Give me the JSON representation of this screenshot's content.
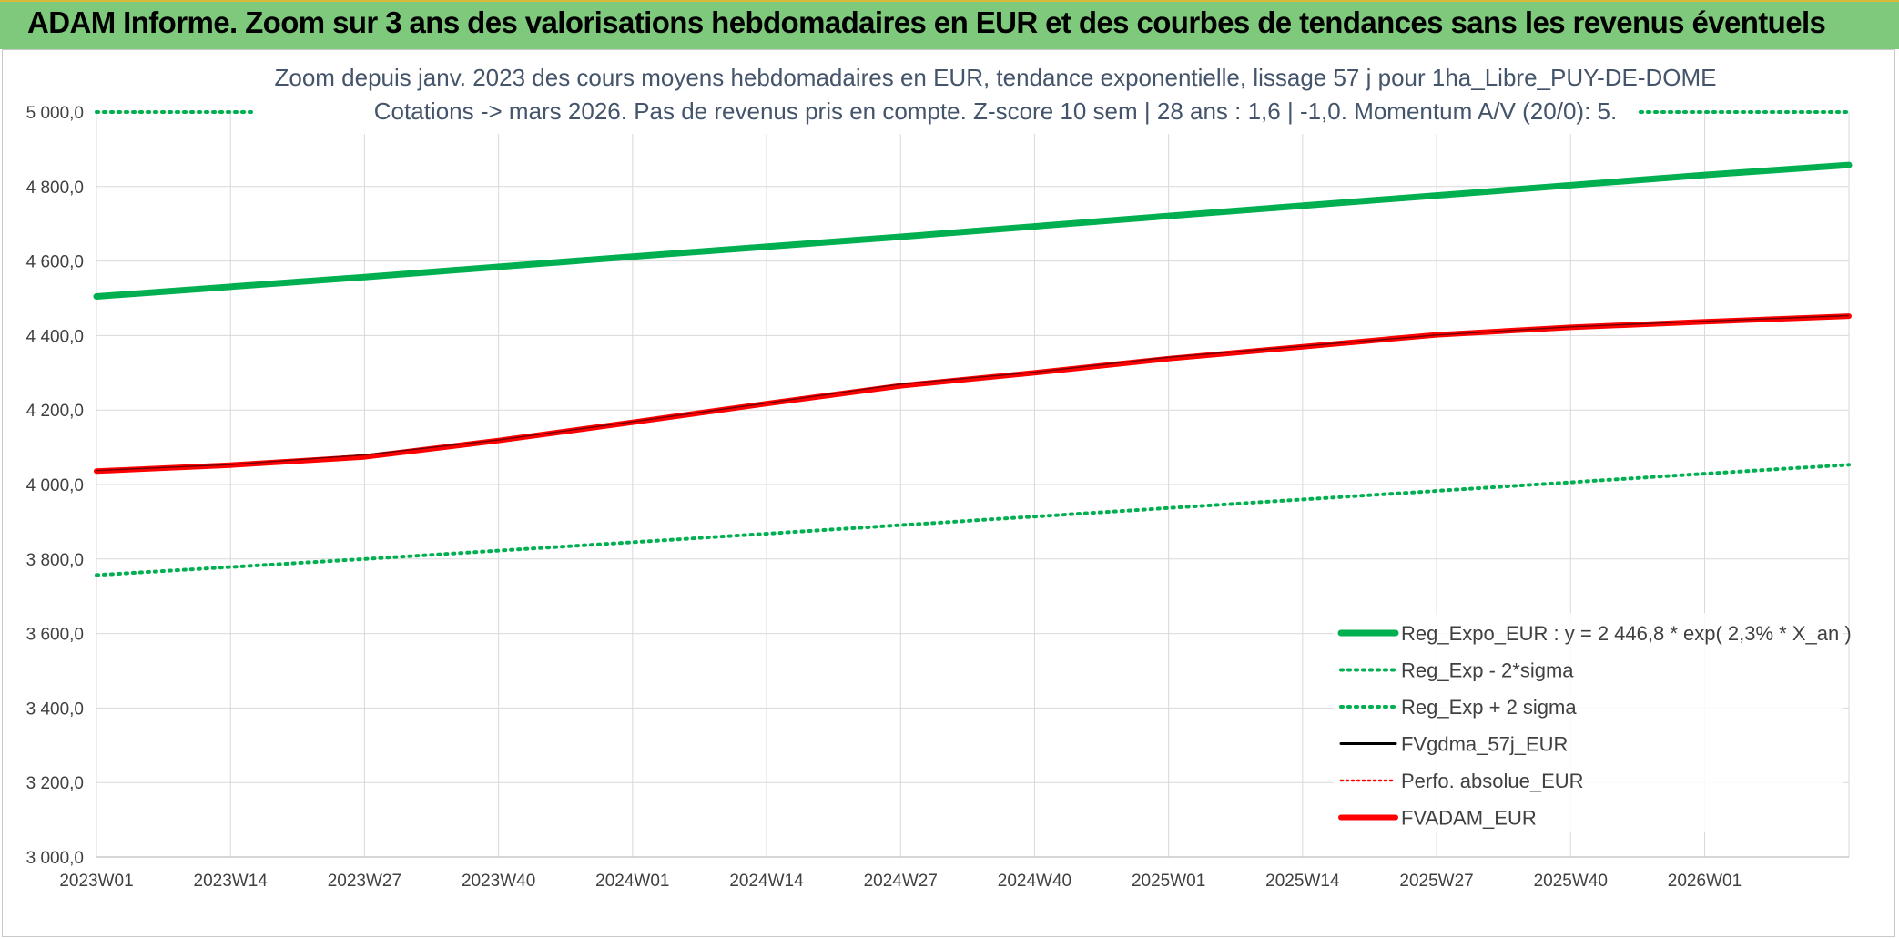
{
  "banner": {
    "title": "ADAM Informe. Zoom sur 3 ans des valorisations hebdomadaires en EUR et des courbes de tendances sans les revenus éventuels"
  },
  "colors": {
    "banner_bg": "#7ec97c",
    "reg_expo": "#00b050",
    "sigma": "#00b050",
    "fvgdma": "#000000",
    "perfo": "#ff0000",
    "fvadam": "#ff0000",
    "grid": "#d9d9d9",
    "text": "#404040"
  },
  "chart_data": {
    "type": "line",
    "title_lines": [
      "Zoom depuis janv. 2023 des cours moyens hebdomadaires en EUR, tendance exponentielle, lissage 57 j pour 1ha_Libre_PUY-DE-DOME",
      "Cotations -> mars 2026. Pas de revenus pris en compte. Z-score 10 sem | 28 ans : 1,6 | -1,0. Momentum A/V (20/0): 5."
    ],
    "xlabel": "",
    "ylabel": "",
    "ylim": [
      3000,
      5000
    ],
    "y_ticks": [
      "3 000,0",
      "3 200,0",
      "3 400,0",
      "3 600,0",
      "3 800,0",
      "4 000,0",
      "4 200,0",
      "4 400,0",
      "4 600,0",
      "4 800,0",
      "5 000,0"
    ],
    "x_ticks": [
      "2023W01",
      "2023W14",
      "2023W27",
      "2023W40",
      "2024W01",
      "2024W14",
      "2024W27",
      "2024W40",
      "2025W01",
      "2025W14",
      "2025W27",
      "2025W40",
      "2026W01"
    ],
    "x_tick_weeks": [
      0,
      13,
      26,
      39,
      52,
      65,
      78,
      91,
      104,
      117,
      130,
      143,
      156
    ],
    "x_range_weeks": [
      0,
      170
    ],
    "grid": true,
    "legend_position": "bottom-right",
    "series": [
      {
        "name": "Reg_Expo_EUR : y = 2 446,8 * exp( 2,3% *  X_an )",
        "style": "solid-thick",
        "x_weeks": [
          0,
          26,
          52,
          78,
          104,
          130,
          156,
          170
        ],
        "values": [
          4505,
          4557,
          4612,
          4665,
          4721,
          4776,
          4831,
          4858
        ]
      },
      {
        "name": "Reg_Exp - 2*sigma",
        "style": "dotted",
        "x_weeks": [
          0,
          26,
          52,
          78,
          104,
          130,
          156,
          170
        ],
        "values": [
          3757,
          3800,
          3845,
          3891,
          3937,
          3983,
          4029,
          4053
        ]
      },
      {
        "name": "Reg_Exp + 2 sigma",
        "style": "dotted",
        "x_weeks": [
          0,
          170
        ],
        "values": [
          5000,
          5000
        ]
      },
      {
        "name": "FVgdma_57j_EUR",
        "style": "solid-thin",
        "x_weeks": [
          0,
          13,
          26,
          39,
          52,
          65,
          78,
          91,
          104,
          117,
          130,
          143,
          156,
          170
        ],
        "values": [
          4036,
          4052,
          4078,
          4118,
          4167,
          4217,
          4268,
          4300,
          4340,
          4370,
          4400,
          4422,
          4437,
          4452
        ]
      },
      {
        "name": "Perfo. absolue_EUR",
        "style": "dotted-thin",
        "x_weeks": [
          0,
          13,
          26,
          39,
          52,
          65,
          78,
          91,
          104,
          117,
          130,
          143,
          156,
          170
        ],
        "values": [
          4036,
          4052,
          4074,
          4118,
          4167,
          4217,
          4265,
          4300,
          4338,
          4370,
          4402,
          4422,
          4437,
          4452
        ]
      },
      {
        "name": "FVADAM_EUR",
        "style": "solid-thick",
        "x_weeks": [
          0,
          13,
          26,
          39,
          52,
          65,
          78,
          91,
          104,
          117,
          130,
          143,
          156,
          170
        ],
        "values": [
          4036,
          4052,
          4074,
          4118,
          4167,
          4217,
          4265,
          4300,
          4338,
          4370,
          4402,
          4422,
          4437,
          4452
        ]
      }
    ]
  }
}
